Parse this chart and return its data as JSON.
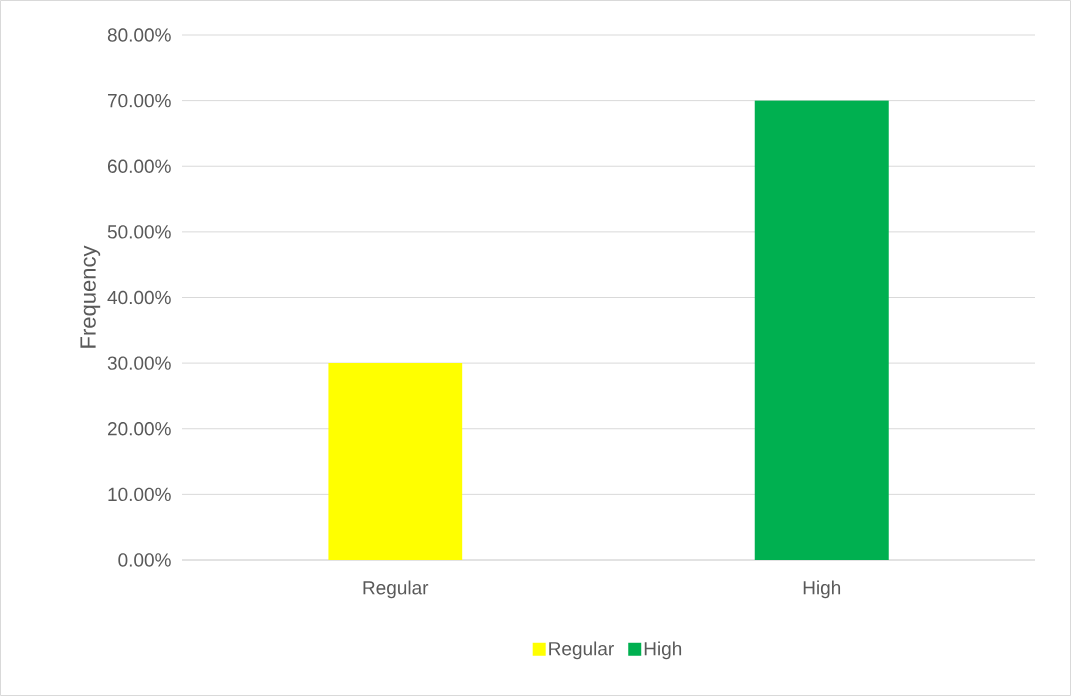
{
  "chart_data": {
    "type": "bar",
    "ylabel": "Frequency",
    "categories": [
      "Regular",
      "High"
    ],
    "series": [
      {
        "name": "Regular",
        "color": "#ffff00",
        "values": [
          30,
          null
        ]
      },
      {
        "name": "High",
        "color": "#00b050",
        "values": [
          null,
          70
        ]
      }
    ],
    "ylim": [
      0,
      80
    ],
    "yticks": [
      {
        "value": 0,
        "label": "0.00%"
      },
      {
        "value": 10,
        "label": "10.00%"
      },
      {
        "value": 20,
        "label": "20.00%"
      },
      {
        "value": 30,
        "label": "30.00%"
      },
      {
        "value": 40,
        "label": "40.00%"
      },
      {
        "value": 50,
        "label": "50.00%"
      },
      {
        "value": 60,
        "label": "60.00%"
      },
      {
        "value": 70,
        "label": "70.00%"
      },
      {
        "value": 80,
        "label": "80.00%"
      }
    ],
    "grid": "y",
    "legend": "bottom"
  }
}
